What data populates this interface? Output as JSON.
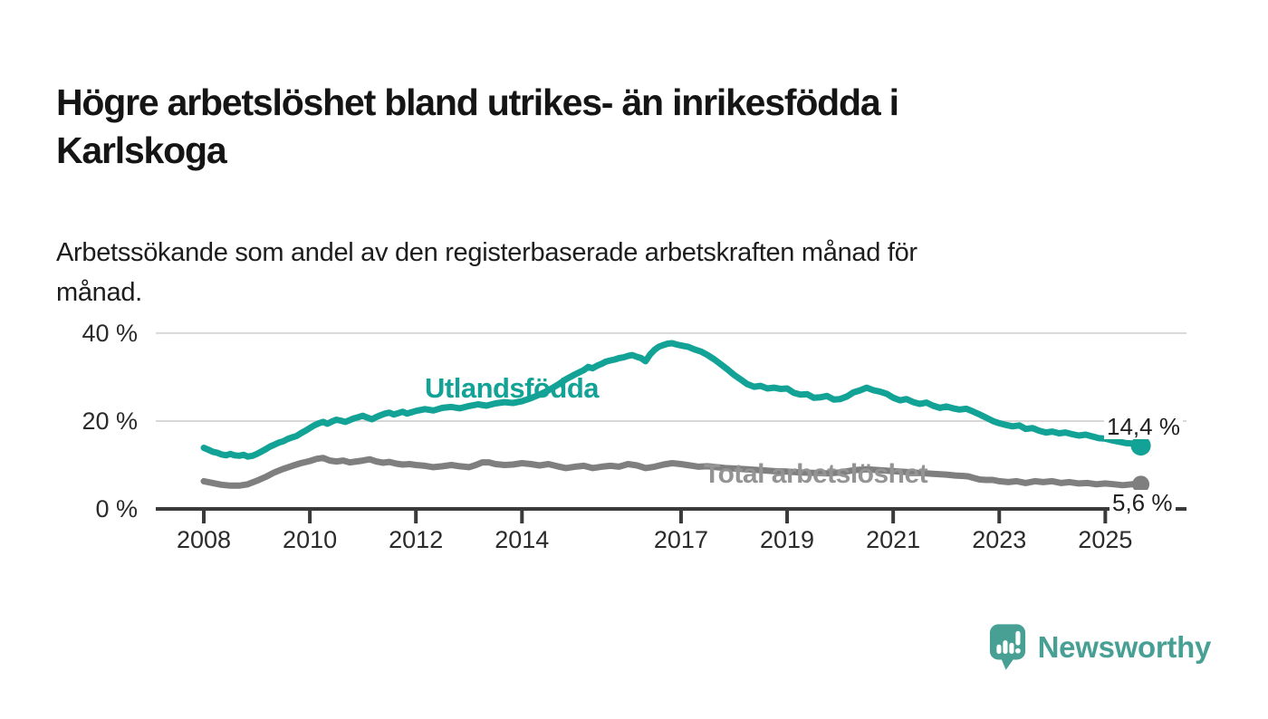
{
  "title": "Högre arbetslöshet bland utrikes- än inrikesfödda i\nKarlskoga",
  "subtitle": "Arbetssökande som andel av den registerbaserade arbetskraften månad för\nmånad.",
  "branding": {
    "logo_text": "Newsworthy",
    "logo_icon": "bar-chart-speech-bubble-icon",
    "logo_color": "#48a094"
  },
  "colors": {
    "background": "#ffffff",
    "title_text": "#151515",
    "axis_line": "#3a3a3a",
    "gridline": "#d8d8d8",
    "tick_label": "#2b2b2b",
    "series_foreign_born": "#12a296",
    "series_total": "#7f7f7f",
    "end_label_text": "#1f1f1f"
  },
  "chart_data": {
    "type": "line",
    "title": "Högre arbetslöshet bland utrikes- än inrikesfödda i Karlskoga",
    "subtitle": "Arbetssökande som andel av den registerbaserade arbetskraften månad för månad.",
    "xlabel": "",
    "ylabel": "",
    "x_range": [
      2007.1,
      2026.5
    ],
    "ylim": [
      0,
      44
    ],
    "grid": "horizontal",
    "legend_position": "inline-labels",
    "y_ticks": [
      {
        "value": 40,
        "label": "40 %",
        "gridline": true
      },
      {
        "value": 20,
        "label": "20 %",
        "gridline": true
      },
      {
        "value": 0,
        "label": "0 %",
        "gridline": false
      }
    ],
    "x_ticks": [
      {
        "year": 2008,
        "label": "2008"
      },
      {
        "year": 2010,
        "label": "2010"
      },
      {
        "year": 2012,
        "label": "2012"
      },
      {
        "year": 2014,
        "label": "2014"
      },
      {
        "year": 2017,
        "label": "2017"
      },
      {
        "year": 2019,
        "label": "2019"
      },
      {
        "year": 2021,
        "label": "2021"
      },
      {
        "year": 2023,
        "label": "2023"
      },
      {
        "year": 2025,
        "label": "2025"
      }
    ],
    "series": [
      {
        "name": "Utlandsfödda",
        "color": "#12a296",
        "end_label": "14,4 %",
        "end_value": 14.4,
        "points": [
          [
            2008.0,
            13.9
          ],
          [
            2008.08,
            13.5
          ],
          [
            2008.17,
            13.0
          ],
          [
            2008.25,
            12.8
          ],
          [
            2008.33,
            12.4
          ],
          [
            2008.42,
            12.2
          ],
          [
            2008.5,
            12.5
          ],
          [
            2008.58,
            12.2
          ],
          [
            2008.67,
            12.1
          ],
          [
            2008.75,
            12.3
          ],
          [
            2008.83,
            11.9
          ],
          [
            2008.92,
            12.1
          ],
          [
            2009.0,
            12.5
          ],
          [
            2009.08,
            13.0
          ],
          [
            2009.17,
            13.6
          ],
          [
            2009.25,
            14.2
          ],
          [
            2009.33,
            14.6
          ],
          [
            2009.42,
            15.1
          ],
          [
            2009.5,
            15.4
          ],
          [
            2009.58,
            15.9
          ],
          [
            2009.67,
            16.3
          ],
          [
            2009.75,
            16.6
          ],
          [
            2009.83,
            17.2
          ],
          [
            2009.92,
            17.8
          ],
          [
            2010.0,
            18.4
          ],
          [
            2010.08,
            19.0
          ],
          [
            2010.17,
            19.5
          ],
          [
            2010.25,
            19.8
          ],
          [
            2010.33,
            19.4
          ],
          [
            2010.42,
            19.9
          ],
          [
            2010.5,
            20.3
          ],
          [
            2010.58,
            20.1
          ],
          [
            2010.67,
            19.8
          ],
          [
            2010.75,
            20.2
          ],
          [
            2010.83,
            20.6
          ],
          [
            2010.92,
            20.9
          ],
          [
            2011.0,
            21.2
          ],
          [
            2011.08,
            20.8
          ],
          [
            2011.17,
            20.4
          ],
          [
            2011.25,
            20.9
          ],
          [
            2011.33,
            21.3
          ],
          [
            2011.42,
            21.7
          ],
          [
            2011.5,
            21.9
          ],
          [
            2011.58,
            21.5
          ],
          [
            2011.67,
            21.8
          ],
          [
            2011.75,
            22.1
          ],
          [
            2011.83,
            21.7
          ],
          [
            2011.92,
            22.0
          ],
          [
            2012.0,
            22.3
          ],
          [
            2012.17,
            22.7
          ],
          [
            2012.33,
            22.4
          ],
          [
            2012.5,
            23.0
          ],
          [
            2012.67,
            23.2
          ],
          [
            2012.83,
            22.9
          ],
          [
            2013.0,
            23.4
          ],
          [
            2013.17,
            23.8
          ],
          [
            2013.33,
            23.5
          ],
          [
            2013.5,
            24.0
          ],
          [
            2013.67,
            24.3
          ],
          [
            2013.83,
            24.1
          ],
          [
            2014.0,
            24.5
          ],
          [
            2014.17,
            25.2
          ],
          [
            2014.33,
            26.0
          ],
          [
            2014.5,
            27.0
          ],
          [
            2014.67,
            28.2
          ],
          [
            2014.83,
            29.5
          ],
          [
            2015.0,
            30.6
          ],
          [
            2015.17,
            31.6
          ],
          [
            2015.25,
            32.3
          ],
          [
            2015.33,
            32.0
          ],
          [
            2015.42,
            32.6
          ],
          [
            2015.5,
            33.0
          ],
          [
            2015.58,
            33.5
          ],
          [
            2015.67,
            33.8
          ],
          [
            2015.75,
            34.0
          ],
          [
            2015.83,
            34.3
          ],
          [
            2015.92,
            34.5
          ],
          [
            2016.0,
            34.8
          ],
          [
            2016.08,
            35.0
          ],
          [
            2016.17,
            34.6
          ],
          [
            2016.25,
            34.3
          ],
          [
            2016.33,
            33.6
          ],
          [
            2016.42,
            35.2
          ],
          [
            2016.5,
            36.2
          ],
          [
            2016.58,
            36.9
          ],
          [
            2016.67,
            37.3
          ],
          [
            2016.75,
            37.6
          ],
          [
            2016.83,
            37.7
          ],
          [
            2016.92,
            37.4
          ],
          [
            2017.0,
            37.2
          ],
          [
            2017.13,
            36.9
          ],
          [
            2017.25,
            36.3
          ],
          [
            2017.38,
            35.8
          ],
          [
            2017.5,
            35.0
          ],
          [
            2017.63,
            34.0
          ],
          [
            2017.75,
            32.9
          ],
          [
            2017.88,
            31.7
          ],
          [
            2018.0,
            30.5
          ],
          [
            2018.13,
            29.4
          ],
          [
            2018.25,
            28.4
          ],
          [
            2018.38,
            27.8
          ],
          [
            2018.5,
            28.0
          ],
          [
            2018.63,
            27.4
          ],
          [
            2018.75,
            27.6
          ],
          [
            2018.88,
            27.3
          ],
          [
            2019.0,
            27.4
          ],
          [
            2019.13,
            26.4
          ],
          [
            2019.25,
            26.0
          ],
          [
            2019.38,
            26.1
          ],
          [
            2019.5,
            25.3
          ],
          [
            2019.63,
            25.4
          ],
          [
            2019.75,
            25.7
          ],
          [
            2019.88,
            24.9
          ],
          [
            2020.0,
            25.0
          ],
          [
            2020.13,
            25.6
          ],
          [
            2020.25,
            26.5
          ],
          [
            2020.38,
            27.0
          ],
          [
            2020.5,
            27.6
          ],
          [
            2020.63,
            27.0
          ],
          [
            2020.75,
            26.7
          ],
          [
            2020.88,
            26.2
          ],
          [
            2021.0,
            25.3
          ],
          [
            2021.13,
            24.7
          ],
          [
            2021.25,
            25.0
          ],
          [
            2021.38,
            24.3
          ],
          [
            2021.5,
            23.9
          ],
          [
            2021.63,
            24.2
          ],
          [
            2021.75,
            23.5
          ],
          [
            2021.88,
            23.0
          ],
          [
            2022.0,
            23.3
          ],
          [
            2022.13,
            22.9
          ],
          [
            2022.25,
            22.6
          ],
          [
            2022.38,
            22.8
          ],
          [
            2022.5,
            22.2
          ],
          [
            2022.63,
            21.5
          ],
          [
            2022.75,
            20.8
          ],
          [
            2022.88,
            20.0
          ],
          [
            2023.0,
            19.5
          ],
          [
            2023.13,
            19.1
          ],
          [
            2023.25,
            18.8
          ],
          [
            2023.38,
            19.0
          ],
          [
            2023.5,
            18.2
          ],
          [
            2023.63,
            18.4
          ],
          [
            2023.75,
            17.8
          ],
          [
            2023.88,
            17.4
          ],
          [
            2024.0,
            17.6
          ],
          [
            2024.13,
            17.2
          ],
          [
            2024.25,
            17.4
          ],
          [
            2024.38,
            17.0
          ],
          [
            2024.5,
            16.7
          ],
          [
            2024.63,
            16.9
          ],
          [
            2024.75,
            16.5
          ],
          [
            2024.88,
            16.1
          ],
          [
            2025.0,
            16.0
          ],
          [
            2025.13,
            15.6
          ],
          [
            2025.25,
            15.3
          ],
          [
            2025.38,
            15.0
          ],
          [
            2025.5,
            14.9
          ],
          [
            2025.58,
            14.6
          ],
          [
            2025.67,
            14.4
          ]
        ]
      },
      {
        "name": "Total arbetslöshet",
        "color": "#7f7f7f",
        "end_label": "5,6 %",
        "end_value": 5.6,
        "points": [
          [
            2008.0,
            6.3
          ],
          [
            2008.17,
            5.9
          ],
          [
            2008.33,
            5.5
          ],
          [
            2008.5,
            5.3
          ],
          [
            2008.67,
            5.3
          ],
          [
            2008.83,
            5.6
          ],
          [
            2009.0,
            6.4
          ],
          [
            2009.17,
            7.3
          ],
          [
            2009.33,
            8.3
          ],
          [
            2009.5,
            9.1
          ],
          [
            2009.67,
            9.8
          ],
          [
            2009.83,
            10.4
          ],
          [
            2010.0,
            10.9
          ],
          [
            2010.13,
            11.4
          ],
          [
            2010.25,
            11.6
          ],
          [
            2010.38,
            11.0
          ],
          [
            2010.5,
            10.8
          ],
          [
            2010.63,
            11.0
          ],
          [
            2010.75,
            10.6
          ],
          [
            2010.88,
            10.8
          ],
          [
            2011.0,
            11.0
          ],
          [
            2011.13,
            11.3
          ],
          [
            2011.25,
            10.8
          ],
          [
            2011.38,
            10.5
          ],
          [
            2011.5,
            10.7
          ],
          [
            2011.63,
            10.3
          ],
          [
            2011.75,
            10.1
          ],
          [
            2011.88,
            10.2
          ],
          [
            2012.0,
            10.0
          ],
          [
            2012.17,
            9.8
          ],
          [
            2012.33,
            9.5
          ],
          [
            2012.5,
            9.7
          ],
          [
            2012.67,
            10.0
          ],
          [
            2012.83,
            9.7
          ],
          [
            2013.0,
            9.5
          ],
          [
            2013.13,
            10.0
          ],
          [
            2013.25,
            10.6
          ],
          [
            2013.38,
            10.6
          ],
          [
            2013.5,
            10.2
          ],
          [
            2013.67,
            10.0
          ],
          [
            2013.83,
            10.1
          ],
          [
            2014.0,
            10.4
          ],
          [
            2014.17,
            10.2
          ],
          [
            2014.33,
            9.9
          ],
          [
            2014.5,
            10.2
          ],
          [
            2014.67,
            9.7
          ],
          [
            2014.83,
            9.3
          ],
          [
            2015.0,
            9.6
          ],
          [
            2015.17,
            9.8
          ],
          [
            2015.33,
            9.3
          ],
          [
            2015.5,
            9.6
          ],
          [
            2015.67,
            9.8
          ],
          [
            2015.83,
            9.6
          ],
          [
            2016.0,
            10.2
          ],
          [
            2016.17,
            9.9
          ],
          [
            2016.33,
            9.3
          ],
          [
            2016.5,
            9.6
          ],
          [
            2016.67,
            10.1
          ],
          [
            2016.83,
            10.4
          ],
          [
            2017.0,
            10.2
          ],
          [
            2017.17,
            9.9
          ],
          [
            2017.33,
            9.6
          ],
          [
            2017.5,
            9.7
          ],
          [
            2017.67,
            9.5
          ],
          [
            2017.83,
            9.3
          ],
          [
            2018.0,
            9.2
          ],
          [
            2018.25,
            9.0
          ],
          [
            2018.5,
            8.8
          ],
          [
            2018.75,
            8.6
          ],
          [
            2019.0,
            8.5
          ],
          [
            2019.25,
            8.3
          ],
          [
            2019.5,
            8.2
          ],
          [
            2019.75,
            8.1
          ],
          [
            2020.0,
            8.3
          ],
          [
            2020.25,
            8.8
          ],
          [
            2020.5,
            9.0
          ],
          [
            2020.75,
            8.8
          ],
          [
            2021.0,
            8.6
          ],
          [
            2021.25,
            8.4
          ],
          [
            2021.5,
            8.2
          ],
          [
            2021.75,
            8.0
          ],
          [
            2022.0,
            7.8
          ],
          [
            2022.17,
            7.6
          ],
          [
            2022.33,
            7.5
          ],
          [
            2022.42,
            7.4
          ],
          [
            2022.5,
            7.1
          ],
          [
            2022.63,
            6.7
          ],
          [
            2022.75,
            6.6
          ],
          [
            2022.88,
            6.6
          ],
          [
            2023.0,
            6.3
          ],
          [
            2023.17,
            6.1
          ],
          [
            2023.33,
            6.3
          ],
          [
            2023.5,
            5.9
          ],
          [
            2023.67,
            6.3
          ],
          [
            2023.83,
            6.1
          ],
          [
            2024.0,
            6.3
          ],
          [
            2024.17,
            5.9
          ],
          [
            2024.33,
            6.1
          ],
          [
            2024.5,
            5.8
          ],
          [
            2024.67,
            5.9
          ],
          [
            2024.83,
            5.6
          ],
          [
            2025.0,
            5.8
          ],
          [
            2025.17,
            5.6
          ],
          [
            2025.33,
            5.4
          ],
          [
            2025.5,
            5.6
          ],
          [
            2025.67,
            5.6
          ]
        ]
      }
    ]
  }
}
